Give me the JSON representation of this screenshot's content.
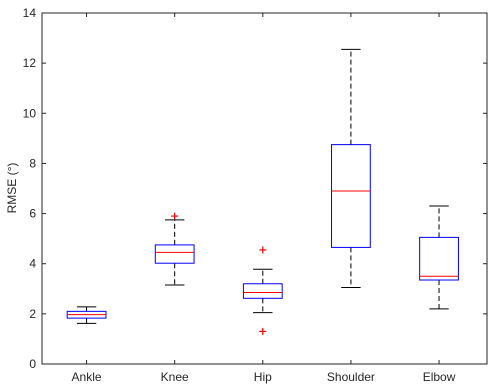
{
  "chart_data": {
    "type": "box",
    "ylabel": "RMSE (°)",
    "xlabel": "",
    "title": "",
    "ylim": [
      0,
      14
    ],
    "yticks": [
      0,
      2,
      4,
      6,
      8,
      10,
      12,
      14
    ],
    "categories": [
      "Ankle",
      "Knee",
      "Hip",
      "Shoulder",
      "Elbow"
    ],
    "boxes": [
      {
        "category": "Ankle",
        "whisker_low": 1.62,
        "q1": 1.83,
        "median": 1.97,
        "q3": 2.1,
        "whisker_high": 2.28,
        "outliers": []
      },
      {
        "category": "Knee",
        "whisker_low": 3.15,
        "q1": 4.02,
        "median": 4.45,
        "q3": 4.75,
        "whisker_high": 5.75,
        "outliers": [
          5.9
        ]
      },
      {
        "category": "Hip",
        "whisker_low": 2.05,
        "q1": 2.62,
        "median": 2.85,
        "q3": 3.2,
        "whisker_high": 3.78,
        "outliers": [
          4.55,
          1.3
        ]
      },
      {
        "category": "Shoulder",
        "whisker_low": 3.05,
        "q1": 4.65,
        "median": 6.9,
        "q3": 8.75,
        "whisker_high": 12.55,
        "outliers": []
      },
      {
        "category": "Elbow",
        "whisker_low": 2.2,
        "q1": 3.35,
        "median": 3.5,
        "q3": 5.05,
        "whisker_high": 6.3,
        "outliers": []
      }
    ],
    "colors": {
      "box": "#0000ff",
      "median": "#ff0000",
      "whisker": "#000000",
      "outlier": "#ff0000",
      "axis": "#262626"
    },
    "grid": false,
    "legend": "none"
  }
}
